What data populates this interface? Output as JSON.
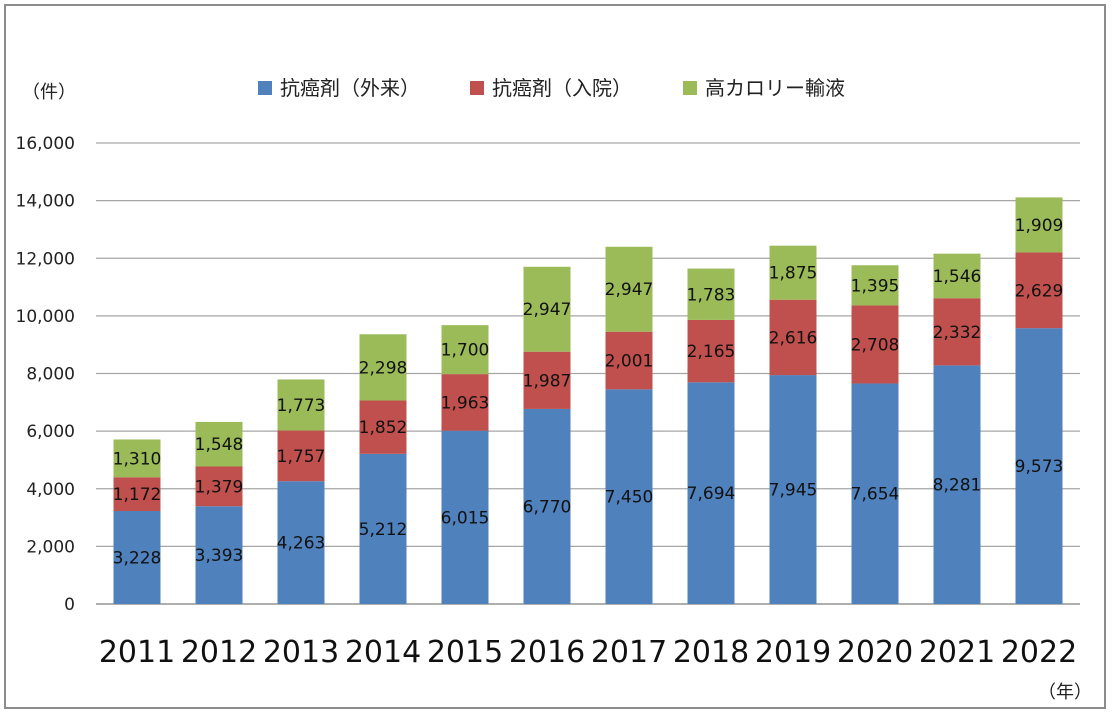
{
  "chart_data": {
    "type": "bar",
    "stacked": true,
    "categories": [
      "2011",
      "2012",
      "2013",
      "2014",
      "2015",
      "2016",
      "2017",
      "2018",
      "2019",
      "2020",
      "2021",
      "2022"
    ],
    "series": [
      {
        "name": "抗癌剤（外来）",
        "color": "#4f81bd",
        "values": [
          3228,
          3393,
          4263,
          5212,
          6015,
          6770,
          7450,
          7694,
          7945,
          7654,
          8281,
          9573
        ],
        "labels": [
          "3,228",
          "3,393",
          "4,263",
          "5,212",
          "6,015",
          "6,770",
          "7,450",
          "7,694",
          "7,945",
          "7,654",
          "8,281",
          "9,573"
        ]
      },
      {
        "name": "抗癌剤（入院）",
        "color": "#c0504d",
        "values": [
          1172,
          1379,
          1757,
          1852,
          1963,
          1987,
          2001,
          2165,
          2616,
          2708,
          2332,
          2629
        ],
        "labels": [
          "1,172",
          "1,379",
          "1,757",
          "1,852",
          "1,963",
          "1,987",
          "2,001",
          "2,165",
          "2,616",
          "2,708",
          "2,332",
          "2,629"
        ]
      },
      {
        "name": "高カロリー輸液",
        "color": "#9bbb59",
        "values": [
          1310,
          1548,
          1773,
          2298,
          1700,
          2947,
          2947,
          1783,
          1875,
          1395,
          1546,
          1909
        ],
        "labels": [
          "1,310",
          "1,548",
          "1,773",
          "2,298",
          "1,700",
          "2,947",
          "2,947",
          "1,783",
          "1,875",
          "1,395",
          "1,546",
          "1,909"
        ]
      }
    ],
    "ylim": [
      0,
      16000
    ],
    "y_ticks": [
      0,
      2000,
      4000,
      6000,
      8000,
      10000,
      12000,
      14000,
      16000
    ],
    "y_tick_labels": [
      "0",
      "2,000",
      "4,000",
      "6,000",
      "8,000",
      "10,000",
      "12,000",
      "14,000",
      "16,000"
    ],
    "y_unit": "（件）",
    "x_unit": "（年）",
    "grid": true,
    "legend_position": "top"
  }
}
